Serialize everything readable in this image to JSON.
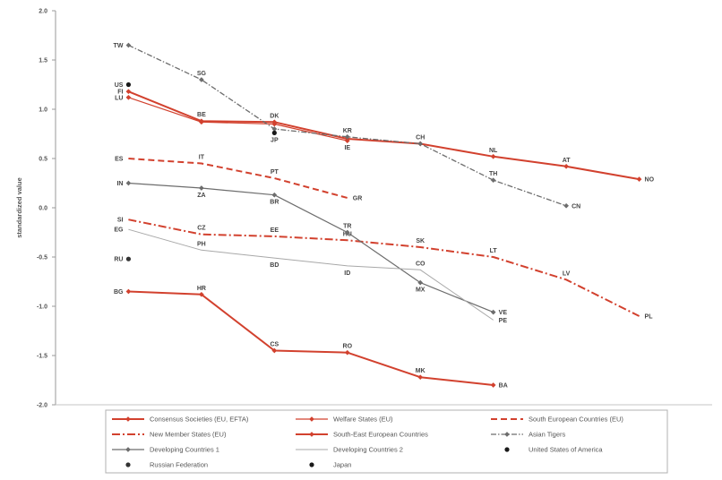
{
  "chart_data": {
    "type": "line",
    "title": "",
    "xlabel": "",
    "ylabel": "standardized value",
    "xlim": [
      0,
      9
    ],
    "ylim": [
      -2.0,
      2.0
    ],
    "yticks": [
      2.0,
      1.5,
      1.0,
      0.5,
      0.0,
      -0.5,
      -1.0,
      -1.5,
      -2.0
    ],
    "ytick_labels": [
      "2.0",
      "1.5",
      "1.0",
      "0.5",
      "0.0",
      "-0.5",
      "-1.0",
      "-1.5",
      "-2.0"
    ],
    "grid": false,
    "legend": "bottom",
    "series": [
      {
        "name": "Consensus Societies (EU, EFTA)",
        "color": "#d2412e",
        "style": "solid",
        "marker": "diamond",
        "x": [
          1,
          2,
          3,
          4,
          5,
          6,
          7,
          8
        ],
        "y": [
          1.18,
          0.88,
          0.87,
          0.7,
          0.65,
          0.52,
          0.42,
          0.29
        ],
        "labels": [
          "FI",
          "BE",
          "DK",
          "",
          "CH",
          "NL",
          "AT",
          "NO"
        ]
      },
      {
        "name": "Welfare States (EU)",
        "color": "#d2412e",
        "style": "solid-thin",
        "marker": "diamond",
        "x": [
          1,
          2,
          3,
          4
        ],
        "y": [
          1.12,
          0.87,
          0.85,
          0.68
        ],
        "labels": [
          "LU",
          "",
          "",
          "IE"
        ]
      },
      {
        "name": "South European Countries (EU)",
        "color": "#d2412e",
        "style": "dashed",
        "marker": "none",
        "x": [
          1,
          2,
          3,
          4
        ],
        "y": [
          0.5,
          0.45,
          0.3,
          0.1
        ],
        "labels": [
          "ES",
          "IT",
          "PT",
          "GR"
        ]
      },
      {
        "name": "New Member States (EU)",
        "color": "#d2412e",
        "style": "dashdot",
        "marker": "none",
        "x": [
          1,
          2,
          3,
          4,
          5,
          6,
          7,
          8
        ],
        "y": [
          -0.12,
          -0.27,
          -0.29,
          -0.33,
          -0.4,
          -0.5,
          -0.73,
          -1.1
        ],
        "labels": [
          "SI",
          "CZ",
          "EE",
          "HU",
          "SK",
          "LT",
          "LV",
          "PL"
        ]
      },
      {
        "name": "South-East European Countries",
        "color": "#d2412e",
        "style": "solid",
        "marker": "diamond",
        "x": [
          1,
          2,
          3,
          4,
          5,
          6
        ],
        "y": [
          -0.85,
          -0.88,
          -1.45,
          -1.47,
          -1.72,
          -1.8
        ],
        "labels": [
          "BG",
          "HR",
          "CS",
          "RO",
          "MK",
          "BA"
        ]
      },
      {
        "name": "Asian Tigers",
        "color": "#6d6d6d",
        "style": "dashdot-thin",
        "marker": "diamond",
        "x": [
          1,
          2,
          3,
          4,
          5,
          6,
          7
        ],
        "y": [
          1.65,
          1.3,
          0.8,
          0.72,
          0.65,
          0.28,
          0.02
        ],
        "labels": [
          "TW",
          "SG",
          "",
          "KR",
          "",
          "TH",
          "CN"
        ]
      },
      {
        "name": "Developing Countries 1",
        "color": "#6d6d6d",
        "style": "solid-thin",
        "marker": "diamond",
        "x": [
          1,
          2,
          3,
          4,
          5,
          6
        ],
        "y": [
          0.25,
          0.2,
          0.13,
          -0.25,
          -0.76,
          -1.06
        ],
        "labels": [
          "IN",
          "ZA",
          "BR",
          "TR",
          "MX",
          "VE"
        ]
      },
      {
        "name": "Developing Countries 2",
        "color": "#a8a8a8",
        "style": "thin",
        "marker": "none",
        "x": [
          1,
          2,
          3,
          4,
          5,
          6
        ],
        "y": [
          -0.22,
          -0.43,
          -0.51,
          -0.59,
          -0.63,
          -1.14
        ],
        "labels": [
          "EG",
          "PH",
          "BD",
          "ID",
          "CO",
          "PE"
        ]
      },
      {
        "name": "United States of America",
        "color": "#1a1a1a",
        "style": "none",
        "marker": "dot",
        "x": [
          1
        ],
        "y": [
          1.25
        ],
        "labels": [
          "US"
        ]
      },
      {
        "name": "Russian Federation",
        "color": "#333333",
        "style": "none",
        "marker": "dot",
        "x": [
          1
        ],
        "y": [
          -0.52
        ],
        "labels": [
          "RU"
        ]
      },
      {
        "name": "Japan",
        "color": "#1a1a1a",
        "style": "none",
        "marker": "dot",
        "x": [
          3
        ],
        "y": [
          0.76
        ],
        "labels": [
          "JP"
        ]
      }
    ]
  }
}
